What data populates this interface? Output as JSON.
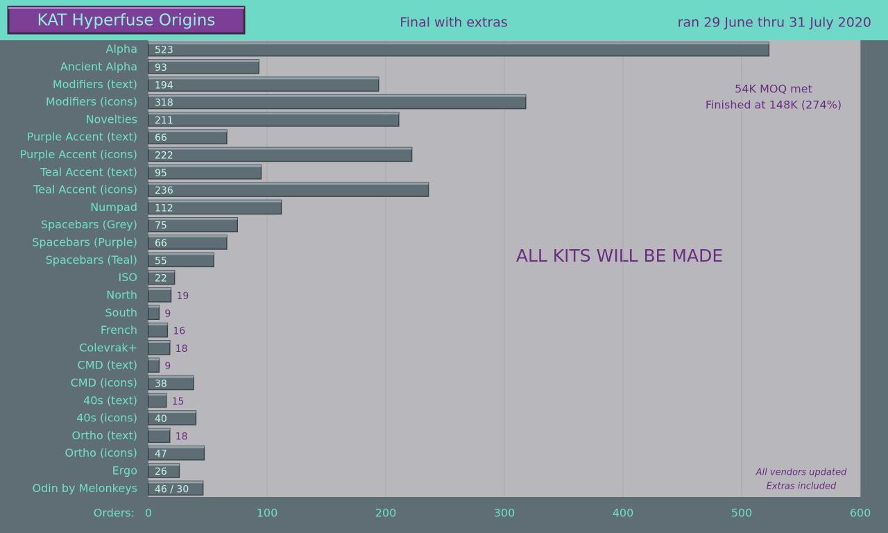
{
  "chart_data": {
    "type": "bar",
    "orientation": "horizontal",
    "title": "KAT Hyperfuse Origins",
    "subtitle": "Final with extras",
    "date_note": "ran 29 June thru 31 July 2020",
    "x_label": "Orders:",
    "categories": [
      "Alpha",
      "Ancient Alpha",
      "Modifiers (text)",
      "Modifiers (icons)",
      "Novelties",
      "Purple Accent (text)",
      "Purple Accent (icons)",
      "Teal Accent (text)",
      "Teal Accent (icons)",
      "Numpad",
      "Spacebars (Grey)",
      "Spacebars (Purple)",
      "Spacebars (Teal)",
      "ISO",
      "North",
      "South",
      "French",
      "Colevrak+",
      "CMD (text)",
      "CMD (icons)",
      "40s (text)",
      "40s (icons)",
      "Ortho (text)",
      "Ortho (icons)",
      "Ergo",
      "Odin by Melonkeys"
    ],
    "values": [
      523,
      93,
      194,
      318,
      211,
      66,
      222,
      95,
      236,
      112,
      75,
      66,
      55,
      22,
      19,
      9,
      16,
      18,
      9,
      38,
      15,
      40,
      18,
      47,
      26,
      46
    ],
    "value_labels": [
      "523",
      "93",
      "194",
      "318",
      "211",
      "66",
      "222",
      "95",
      "236",
      "112",
      "75",
      "66",
      "55",
      "22",
      "19",
      "9",
      "16",
      "18",
      "9",
      "38",
      "15",
      "40",
      "18",
      "47",
      "26",
      "46 / 30"
    ],
    "color": "#5f6e74",
    "xlim": [
      0,
      600
    ],
    "xticks": [
      0,
      100,
      200,
      300,
      400,
      500,
      600
    ],
    "grid": true,
    "annotations": [
      "54K MOQ met",
      "Finished at 148K (274%)",
      "ALL KITS WILL BE MADE",
      "All vendors updated",
      "Extras included"
    ]
  }
}
